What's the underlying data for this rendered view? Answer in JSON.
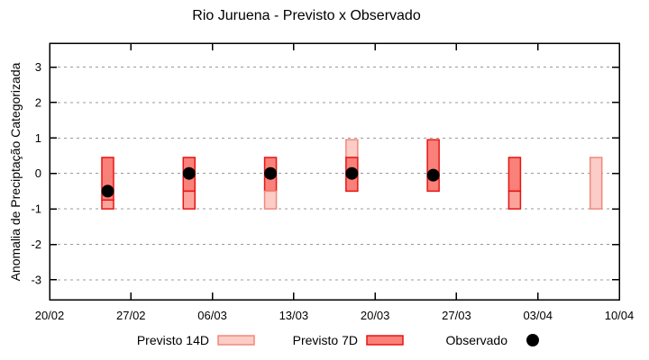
{
  "chart_data": {
    "type": "bar",
    "subtype": "forecast-range-boxes-with-observed-dots",
    "title": "Rio Juruena - Previsto x Observado",
    "xlabel": "",
    "ylabel": "Anomalia de Preciptação Categorizada",
    "ylim": [
      -3.6,
      3.7
    ],
    "ytick_values": [
      -3,
      -2,
      -1,
      0,
      1,
      2,
      3
    ],
    "xtick_labels": [
      "20/02",
      "27/02",
      "06/03",
      "13/03",
      "20/03",
      "27/03",
      "03/04",
      "10/04"
    ],
    "xtick_days": [
      0,
      7,
      14,
      21,
      28,
      35,
      42,
      49
    ],
    "x_span_days": 49,
    "grid": "horizontal-dashed-only",
    "legend_position": "bottom-center",
    "legend": [
      {
        "label": "Previsto 14D",
        "swatch": "box-light-pink"
      },
      {
        "label": "Previsto 7D",
        "swatch": "box-red"
      },
      {
        "label": "Observado",
        "swatch": "black-dot"
      }
    ],
    "colors": {
      "border_red": "#e81414",
      "border_pink": "#f0897c",
      "fill_7d": "#f98179",
      "fill_7d_light": "#fba49b",
      "fill_14d": "#fcccc6",
      "observed": "#000000",
      "grid": "#999999",
      "axis": "#000000"
    },
    "clusters": [
      {
        "date": "25/02",
        "day_offset": 5,
        "boxes": [
          {
            "style": "7d",
            "from": 0.45,
            "to": -0.75
          },
          {
            "style": "7d_light",
            "from": -0.75,
            "to": -1.0
          }
        ],
        "observed": -0.5
      },
      {
        "date": "04/03",
        "day_offset": 12,
        "boxes": [
          {
            "style": "7d",
            "from": 0.45,
            "to": -0.5
          },
          {
            "style": "7d_light",
            "from": -0.5,
            "to": -1.0
          }
        ],
        "observed": 0.0
      },
      {
        "date": "11/03",
        "day_offset": 19,
        "boxes": [
          {
            "style": "7d",
            "from": 0.45,
            "to": -0.5
          },
          {
            "style": "14d",
            "from": -0.5,
            "to": -1.0
          }
        ],
        "observed": 0.0
      },
      {
        "date": "18/03",
        "day_offset": 26,
        "boxes": [
          {
            "style": "14d",
            "from": 0.95,
            "to": 0.45
          },
          {
            "style": "7d",
            "from": 0.45,
            "to": -0.5
          }
        ],
        "observed": 0.0
      },
      {
        "date": "25/03",
        "day_offset": 33,
        "boxes": [
          {
            "style": "7d",
            "from": 0.95,
            "to": -0.5
          }
        ],
        "observed": -0.05
      },
      {
        "date": "01/04",
        "day_offset": 40,
        "boxes": [
          {
            "style": "7d",
            "from": 0.45,
            "to": -0.5
          },
          {
            "style": "7d_light",
            "from": -0.5,
            "to": -1.0
          }
        ],
        "observed": null
      },
      {
        "date": "08/04",
        "day_offset": 47,
        "boxes": [
          {
            "style": "14d",
            "from": 0.45,
            "to": -1.0
          }
        ],
        "observed": null
      }
    ]
  }
}
